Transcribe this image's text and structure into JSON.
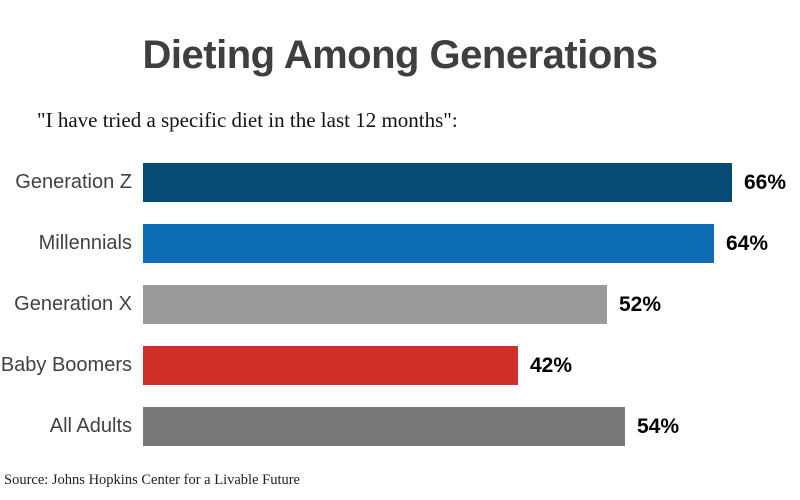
{
  "chart_data": {
    "type": "bar",
    "orientation": "horizontal",
    "title": "Dieting Among Generations",
    "subtitle": "\"I have tried a specific diet in the last 12 months\":",
    "categories": [
      "Generation Z",
      "Millennials",
      "Generation X",
      "Baby Boomers",
      "All Adults"
    ],
    "values": [
      66,
      64,
      52,
      42,
      54
    ],
    "value_labels": [
      "66%",
      "64%",
      "52%",
      "42%",
      "54%"
    ],
    "bar_colors": [
      "#064b73",
      "#0e6cb4",
      "#9a9a9a",
      "#d03028",
      "#787878"
    ],
    "value_suffix": "%",
    "xlim": [
      0,
      74
    ],
    "grid": false,
    "legend": "none",
    "axes_visible": false,
    "source": "Source: Johns Hopkins Center for a Livable Future"
  },
  "colors": {
    "background": "#ffffff",
    "title_text": "#3f3f3f",
    "category_label_text": "#3e4145",
    "value_label_text": "#000000",
    "subtitle_text": "#121212",
    "source_text": "#222222"
  }
}
